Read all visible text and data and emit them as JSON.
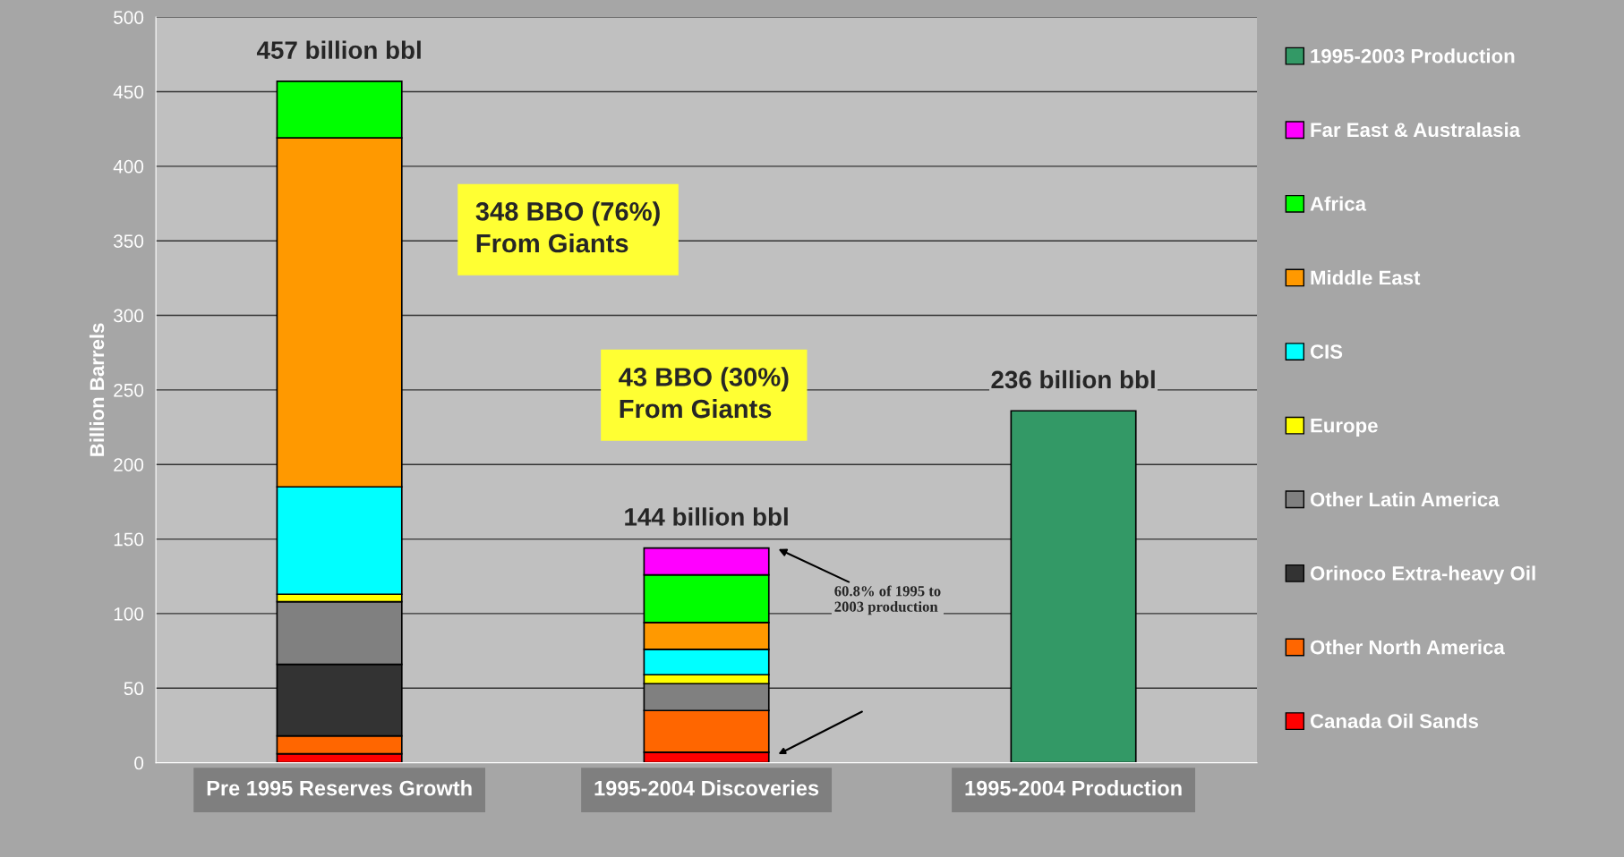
{
  "chart_data": {
    "type": "bar",
    "stacked": true,
    "ylabel": "Billion Barrels",
    "categories": [
      "Pre 1995 Reserves Growth",
      "1995-2004 Discoveries",
      "1995-2004 Production"
    ],
    "series": [
      {
        "name": "Canada Oil Sands",
        "color": "#ff0000",
        "values": [
          6,
          7,
          null
        ]
      },
      {
        "name": "Other North America",
        "color": "#ff6600",
        "values": [
          12,
          28,
          null
        ]
      },
      {
        "name": "Orinoco Extra-heavy Oil",
        "color": "#333333",
        "values": [
          48,
          null,
          null
        ]
      },
      {
        "name": "Other Latin America",
        "color": "#808080",
        "values": [
          42,
          18,
          null
        ]
      },
      {
        "name": "Europe",
        "color": "#ffff00",
        "values": [
          5,
          6,
          null
        ]
      },
      {
        "name": "CIS",
        "color": "#00ffff",
        "values": [
          72,
          17,
          null
        ]
      },
      {
        "name": "Middle East",
        "color": "#ff9900",
        "values": [
          234,
          18,
          null
        ]
      },
      {
        "name": "Africa",
        "color": "#00ff00",
        "values": [
          38,
          32,
          null
        ]
      },
      {
        "name": "Far East & Australasia",
        "color": "#ff00ff",
        "values": [
          null,
          18,
          null
        ]
      },
      {
        "name": "1995-2003 Production",
        "color": "#339966",
        "values": [
          null,
          null,
          236
        ]
      }
    ],
    "totals": [
      "457 billion bbl",
      "144 billion bbl",
      "236 billion bbl"
    ],
    "annotations": [
      "348 BBO (76%)\nFrom Giants",
      "43 BBO (30%)\nFrom Giants",
      "60.8% of 1995 to\n2003 production"
    ],
    "ylim": [
      0,
      500
    ],
    "yticks": [
      0,
      50,
      100,
      150,
      200,
      250,
      300,
      350,
      400,
      450,
      500
    ],
    "grid": "y",
    "legend": "right"
  }
}
